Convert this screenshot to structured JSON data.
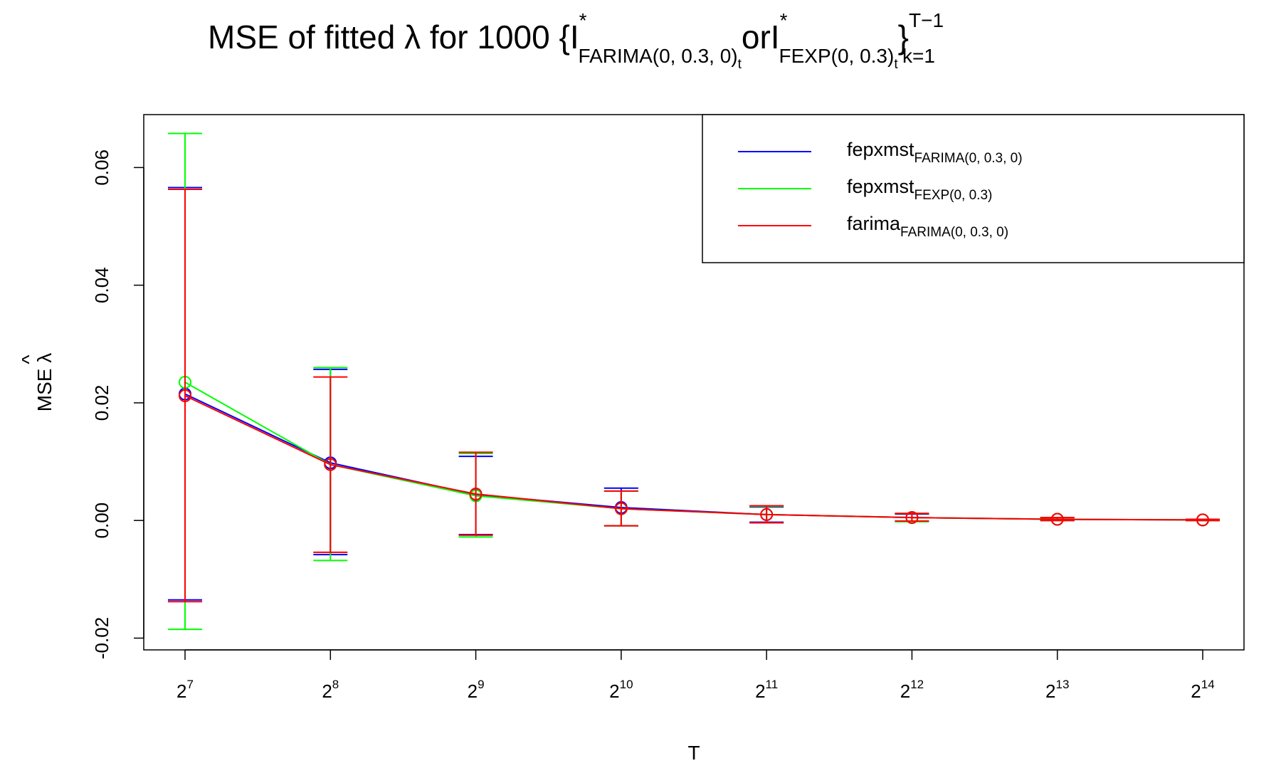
{
  "chart_data": {
    "type": "line",
    "title": {
      "prefix": "MSE of fitted λ for 1000  {I",
      "sup1": "*",
      "sub1": "FARIMA(0, 0.3, 0)",
      "sub1t": "t",
      "mid": "orI",
      "sup2": "*",
      "sub2": "FEXP(0, 0.3)",
      "sub2t": "t",
      "close": "}",
      "upper": "T−1",
      "lower": "k=1"
    },
    "xlabel": "T",
    "ylabel": {
      "text": "MSE λ",
      "hat": "^"
    },
    "x_ticks": [
      {
        "base": "2",
        "exp": "7"
      },
      {
        "base": "2",
        "exp": "8"
      },
      {
        "base": "2",
        "exp": "9"
      },
      {
        "base": "2",
        "exp": "10"
      },
      {
        "base": "2",
        "exp": "11"
      },
      {
        "base": "2",
        "exp": "12"
      },
      {
        "base": "2",
        "exp": "13"
      },
      {
        "base": "2",
        "exp": "14"
      }
    ],
    "x": [
      128,
      256,
      512,
      1024,
      2048,
      4096,
      8192,
      16384
    ],
    "ylim": [
      -0.022,
      0.069
    ],
    "y_ticks": [
      {
        "value": -0.02,
        "label": "-0.02"
      },
      {
        "value": 0.0,
        "label": "0.00"
      },
      {
        "value": 0.02,
        "label": "0.02"
      },
      {
        "value": 0.04,
        "label": "0.04"
      },
      {
        "value": 0.06,
        "label": "0.06"
      }
    ],
    "legend_position": "top-right",
    "series": [
      {
        "id": "blue",
        "legend_main": "fepxmst",
        "legend_sub": "FARIMA(0, 0.3, 0)",
        "color": "#0000ff",
        "values": [
          0.0215,
          0.0098,
          0.0044,
          0.0022,
          0.001,
          0.0005,
          0.0002,
          0.0001
        ],
        "lower": [
          -0.0135,
          -0.0058,
          -0.0024,
          -0.0009,
          -0.0003,
          -0.0001,
          0.0,
          0.0
        ],
        "upper": [
          0.0566,
          0.0257,
          0.0109,
          0.0055,
          0.0023,
          0.0011,
          0.0005,
          0.0002
        ]
      },
      {
        "id": "green",
        "legend_main": "fepxmst",
        "legend_sub": "FEXP(0, 0.3)",
        "color": "#00ff00",
        "values": [
          0.0235,
          0.0095,
          0.0042,
          0.002,
          0.001,
          0.0005,
          0.0002,
          0.0001
        ],
        "lower": [
          -0.0185,
          -0.0068,
          -0.0028,
          -0.0009,
          -0.0004,
          -0.0002,
          0.0,
          0.0
        ],
        "upper": [
          0.0658,
          0.026,
          0.0114,
          0.005,
          0.0024,
          0.0012,
          0.0005,
          0.0002
        ]
      },
      {
        "id": "red",
        "legend_main": "farima",
        "legend_sub": "FARIMA(0, 0.3, 0)",
        "color": "#ff0000",
        "values": [
          0.0212,
          0.0095,
          0.0045,
          0.002,
          0.001,
          0.0005,
          0.0002,
          0.0001
        ],
        "lower": [
          -0.0138,
          -0.0054,
          -0.0025,
          -0.0009,
          -0.0004,
          -0.0001,
          0.0,
          0.0
        ],
        "upper": [
          0.0563,
          0.0244,
          0.0116,
          0.005,
          0.0025,
          0.0012,
          0.0005,
          0.0002
        ]
      }
    ]
  }
}
